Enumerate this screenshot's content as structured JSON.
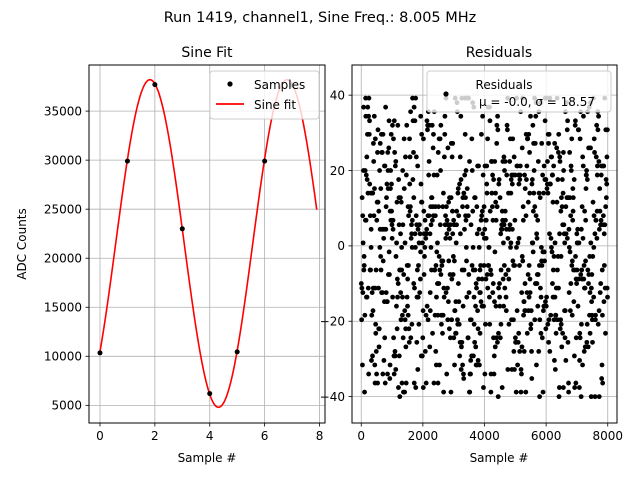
{
  "figure": {
    "suptitle": "Run 1419, channel1, Sine Freq.: 8.005 MHz"
  },
  "chart_data": [
    {
      "type": "line",
      "title": "Sine Fit",
      "xlabel": "Sample #",
      "ylabel": "ADC Counts",
      "xlim": [
        -0.4,
        8.2
      ],
      "ylim": [
        3200,
        39700
      ],
      "x_ticks": [
        0,
        2,
        4,
        6,
        8
      ],
      "y_ticks": [
        5000,
        10000,
        15000,
        20000,
        25000,
        30000,
        35000
      ],
      "grid": true,
      "legend_location": "upper right",
      "series": [
        {
          "name": "Samples",
          "kind": "scatter",
          "marker": "dot",
          "color": "#000000",
          "x": [
            0,
            1,
            2,
            3,
            4,
            5,
            6,
            7
          ],
          "y": [
            10350,
            29900,
            37700,
            23000,
            6200,
            10450,
            29900,
            37650
          ]
        },
        {
          "name": "Sine fit",
          "kind": "line",
          "color": "#ff0000",
          "model": {
            "offset": 21500,
            "amplitude": 16700,
            "frequency_per_sample": 0.2002,
            "phase": -0.72
          },
          "x_range": [
            0,
            7.9
          ]
        }
      ]
    },
    {
      "type": "scatter",
      "title": "Residuals",
      "xlabel": "Sample #",
      "ylabel": "",
      "xlim": [
        -300,
        8300
      ],
      "ylim": [
        -47,
        48
      ],
      "x_ticks": [
        0,
        2000,
        4000,
        6000,
        8000
      ],
      "y_ticks": [
        -40,
        -20,
        0,
        20,
        40
      ],
      "grid": true,
      "legend_location": "upper right",
      "legend_label": "Residuals",
      "stats_label": "μ = -0.0, σ = 18.57",
      "series": [
        {
          "name": "Residuals",
          "color": "#000000",
          "n_points": 8000,
          "mean": 0.0,
          "std": 18.57,
          "band_min": -40,
          "band_max": 40
        }
      ]
    }
  ]
}
